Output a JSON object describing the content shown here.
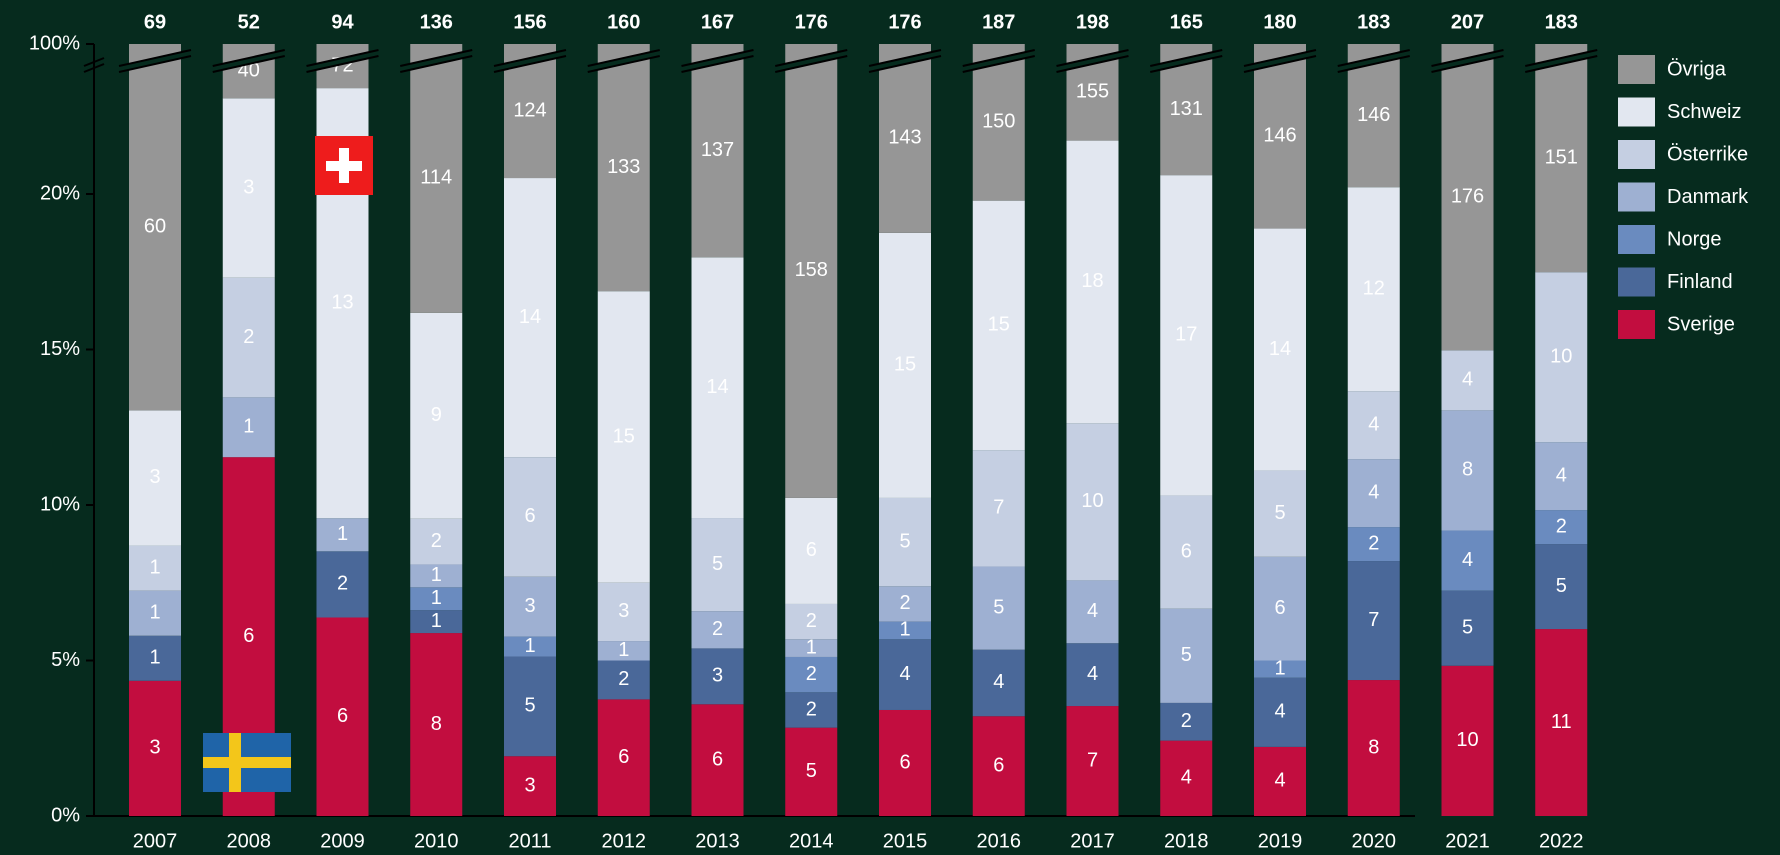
{
  "chart_data": {
    "type": "stacked_bar_percent",
    "axis_break": true,
    "categories": [
      "2007",
      "2008",
      "2009",
      "2010",
      "2011",
      "2012",
      "2013",
      "2014",
      "2015",
      "2016",
      "2017",
      "2018",
      "2019",
      "2020",
      "2021",
      "2022"
    ],
    "totals": [
      69,
      52,
      94,
      136,
      156,
      160,
      167,
      176,
      176,
      187,
      198,
      165,
      180,
      183,
      207,
      183
    ],
    "ylim": [
      0,
      100
    ],
    "yticks": [
      {
        "value": 0,
        "label": "0%"
      },
      {
        "value": 5,
        "label": "5%"
      },
      {
        "value": 10,
        "label": "10%"
      },
      {
        "value": 15,
        "label": "15%"
      },
      {
        "value": 20,
        "label": "20%"
      },
      {
        "value": 100,
        "label": "100%"
      }
    ],
    "series": [
      {
        "name": "Sverige",
        "color": "#c20d3f",
        "label_color": "#ffffff",
        "values": [
          3,
          6,
          6,
          8,
          3,
          6,
          6,
          5,
          6,
          6,
          7,
          4,
          4,
          8,
          10,
          11
        ]
      },
      {
        "name": "Finland",
        "color": "#4a6899",
        "label_color": "#ffffff",
        "values": [
          1,
          null,
          2,
          1,
          5,
          2,
          3,
          2,
          4,
          4,
          4,
          2,
          4,
          7,
          5,
          5
        ]
      },
      {
        "name": "Norge",
        "color": "#6a8bbf",
        "label_color": "#ffffff",
        "values": [
          null,
          null,
          null,
          1,
          1,
          null,
          null,
          2,
          1,
          null,
          null,
          null,
          1,
          2,
          4,
          2
        ]
      },
      {
        "name": "Danmark",
        "color": "#9eb0d2",
        "label_color": "#333333",
        "values": [
          1,
          1,
          1,
          1,
          3,
          1,
          2,
          1,
          2,
          5,
          4,
          5,
          6,
          4,
          8,
          4
        ]
      },
      {
        "name": "Österrike",
        "color": "#c5cfe2",
        "label_color": "#333333",
        "values": [
          1,
          2,
          null,
          2,
          6,
          3,
          5,
          2,
          5,
          7,
          10,
          6,
          5,
          4,
          4,
          10
        ]
      },
      {
        "name": "Schweiz",
        "color": "#e2e7f0",
        "label_color": "#333333",
        "values": [
          3,
          3,
          13,
          9,
          14,
          15,
          14,
          6,
          15,
          15,
          18,
          17,
          14,
          12,
          null,
          null
        ]
      },
      {
        "name": "Övriga",
        "color": "#969696",
        "label_color": "#ffffff",
        "values": [
          60,
          40,
          72,
          114,
          124,
          133,
          137,
          158,
          143,
          150,
          155,
          131,
          146,
          146,
          176,
          151
        ]
      }
    ]
  }
}
